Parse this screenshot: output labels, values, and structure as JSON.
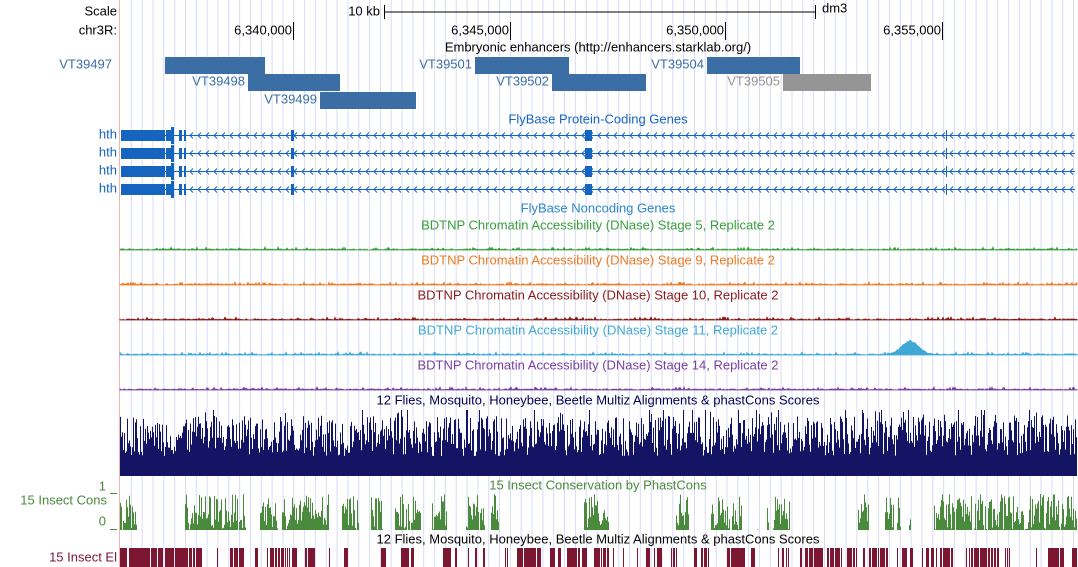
{
  "header": {
    "scale_label": "Scale",
    "chrom_label": "chr3R:",
    "scale_bar": "10 kb",
    "assembly": "dm3",
    "positions": [
      "6,340,000",
      "6,345,000",
      "6,350,000",
      "6,355,000"
    ]
  },
  "tracks": [
    {
      "title": "Embryonic enhancers (http://enhancers.starklab.org/)",
      "items": [
        "VT39497",
        "VT39498",
        "VT39499",
        "VT39501",
        "VT39502",
        "VT39504",
        "VT39505"
      ]
    },
    {
      "title": "FlyBase Protein-Coding Genes",
      "items": [
        "hth",
        "hth",
        "hth",
        "hth"
      ]
    },
    {
      "title": "FlyBase Noncoding Genes"
    },
    {
      "title": "BDTNP Chromatin Accessibility (DNase) Stage 5, Replicate 2"
    },
    {
      "title": "BDTNP Chromatin Accessibility (DNase) Stage 9, Replicate 2"
    },
    {
      "title": "BDTNP Chromatin Accessibility (DNase) Stage 10, Replicate 2"
    },
    {
      "title": "BDTNP Chromatin Accessibility (DNase) Stage 11, Replicate 2"
    },
    {
      "title": "BDTNP Chromatin Accessibility (DNase) Stage 14, Replicate 2"
    },
    {
      "title": "12 Flies, Mosquito, Honeybee, Beetle Multiz Alignments & phastCons Scores"
    },
    {
      "title": "15 Insect Conservation by PhastCons",
      "label": "15 Insect Cons",
      "axis": [
        "1",
        "0"
      ]
    },
    {
      "title": "12 Flies, Mosquito, Honeybee, Beetle Multiz Alignments & phastCons Scores",
      "label": "15 Insect El"
    }
  ]
}
